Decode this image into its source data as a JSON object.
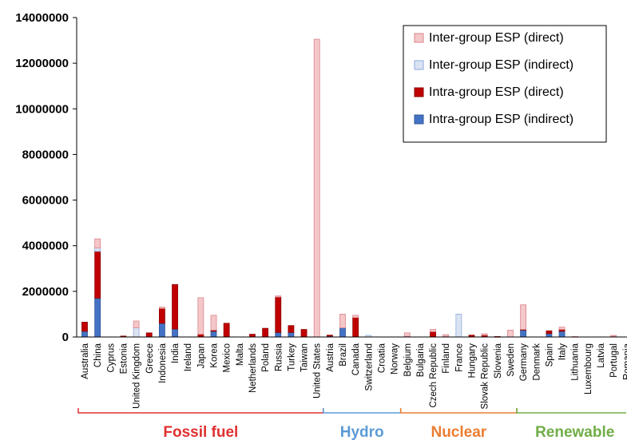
{
  "chart_data": {
    "type": "bar",
    "stacked": true,
    "ylim": [
      0,
      14000000
    ],
    "yticks": [
      "0",
      "2000000",
      "4000000",
      "6000000",
      "8000000",
      "10000000",
      "12000000",
      "14000000"
    ],
    "grid": false,
    "legend_position": "top-right",
    "categories": [
      "Australia",
      "China",
      "Cyprus",
      "Estonia",
      "United Kingdom",
      "Greece",
      "Indonesia",
      "India",
      "Ireland",
      "Japan",
      "Korea",
      "Mexico",
      "Malta",
      "Netherlands",
      "Poland",
      "Russia",
      "Turkey",
      "Taiwan",
      "United States",
      "Austria",
      "Brazil",
      "Canada",
      "Switzerland",
      "Croatia",
      "Norway",
      "Belgium",
      "Bulgaria",
      "Czech Republic",
      "Finland",
      "France",
      "Hungary",
      "Slovak Republic",
      "Slovenia",
      "Sweden",
      "Germany",
      "Denmark",
      "Spain",
      "Italy",
      "Lithuania",
      "Luxembourg",
      "Latvia",
      "Portugal",
      "Romania"
    ],
    "series": [
      {
        "name": "Intra-group ESP (indirect)",
        "color": "#4472C4",
        "border": "#2F5597",
        "values": [
          250000,
          1700000,
          0,
          0,
          0,
          0,
          600000,
          350000,
          0,
          0,
          250000,
          0,
          0,
          0,
          0,
          200000,
          200000,
          0,
          0,
          40000,
          400000,
          0,
          0,
          0,
          0,
          0,
          0,
          0,
          0,
          0,
          0,
          0,
          0,
          0,
          300000,
          0,
          150000,
          250000,
          0,
          0,
          0,
          30000,
          0
        ]
      },
      {
        "name": "Intra-group ESP (direct)",
        "color": "#C00000",
        "border": "#8B0000",
        "values": [
          400000,
          2050000,
          0,
          40000,
          0,
          180000,
          650000,
          1950000,
          0,
          120000,
          50000,
          600000,
          0,
          120000,
          380000,
          1550000,
          300000,
          330000,
          0,
          40000,
          0,
          850000,
          0,
          0,
          0,
          30000,
          0,
          230000,
          30000,
          0,
          80000,
          80000,
          20000,
          0,
          30000,
          0,
          120000,
          80000,
          0,
          0,
          0,
          0,
          0
        ]
      },
      {
        "name": "Inter-group ESP (indirect)",
        "color": "#DAE3F3",
        "border": "#8FAADC",
        "values": [
          0,
          150000,
          0,
          0,
          400000,
          0,
          0,
          0,
          0,
          0,
          0,
          0,
          0,
          0,
          0,
          0,
          0,
          0,
          0,
          0,
          0,
          0,
          70000,
          0,
          0,
          0,
          0,
          0,
          0,
          1000000,
          0,
          0,
          0,
          0,
          0,
          0,
          0,
          0,
          0,
          0,
          0,
          0,
          0
        ]
      },
      {
        "name": "Inter-group ESP (direct)",
        "color": "#F4C7C9",
        "border": "#D9848A",
        "values": [
          0,
          400000,
          0,
          0,
          300000,
          0,
          60000,
          0,
          0,
          1600000,
          650000,
          0,
          0,
          0,
          0,
          50000,
          0,
          0,
          13050000,
          0,
          600000,
          100000,
          0,
          0,
          0,
          150000,
          0,
          100000,
          70000,
          0,
          0,
          60000,
          0,
          300000,
          1080000,
          0,
          0,
          100000,
          20000,
          0,
          0,
          40000,
          0
        ]
      }
    ],
    "groups": [
      {
        "label": "Fossil fuel",
        "color": "#E03030",
        "start": 0,
        "end": 18
      },
      {
        "label": "Hydro",
        "color": "#5B9BD5",
        "start": 19,
        "end": 24
      },
      {
        "label": "Nuclear",
        "color": "#ED7D31",
        "start": 25,
        "end": 33
      },
      {
        "label": "Renewable",
        "color": "#70AD47",
        "start": 34,
        "end": 42
      }
    ],
    "legend": [
      "Inter-group ESP (direct)",
      "Inter-group ESP (indirect)",
      "Intra-group ESP (direct)",
      "Intra-group ESP (indirect)"
    ]
  }
}
